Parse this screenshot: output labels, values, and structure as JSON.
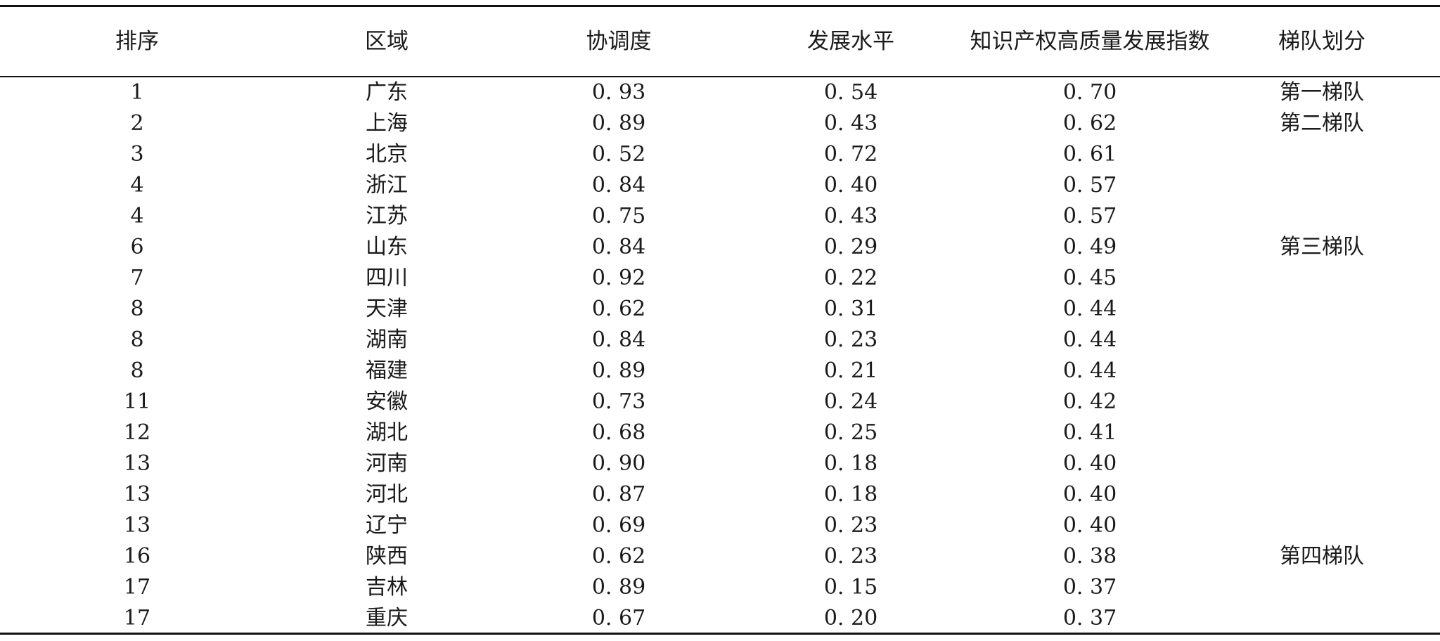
{
  "table": {
    "headers": [
      "排序",
      "区域",
      "协调度",
      "发展水平",
      "知识产权高质量发展指数",
      "梯队划分"
    ],
    "rows": [
      [
        "1",
        "广东",
        "0. 93",
        "0. 54",
        "0. 70",
        "第一梯队"
      ],
      [
        "2",
        "上海",
        "0. 89",
        "0. 43",
        "0. 62",
        "第二梯队"
      ],
      [
        "3",
        "北京",
        "0. 52",
        "0. 72",
        "0. 61",
        ""
      ],
      [
        "4",
        "浙江",
        "0. 84",
        "0. 40",
        "0. 57",
        ""
      ],
      [
        "4",
        "江苏",
        "0. 75",
        "0. 43",
        "0. 57",
        ""
      ],
      [
        "6",
        "山东",
        "0. 84",
        "0. 29",
        "0. 49",
        "第三梯队"
      ],
      [
        "7",
        "四川",
        "0. 92",
        "0. 22",
        "0. 45",
        ""
      ],
      [
        "8",
        "天津",
        "0. 62",
        "0. 31",
        "0. 44",
        ""
      ],
      [
        "8",
        "湖南",
        "0. 84",
        "0. 23",
        "0. 44",
        ""
      ],
      [
        "8",
        "福建",
        "0. 89",
        "0. 21",
        "0. 44",
        ""
      ],
      [
        "11",
        "安徽",
        "0. 73",
        "0. 24",
        "0. 42",
        ""
      ],
      [
        "12",
        "湖北",
        "0. 68",
        "0. 25",
        "0. 41",
        ""
      ],
      [
        "13",
        "河南",
        "0. 90",
        "0. 18",
        "0. 40",
        ""
      ],
      [
        "13",
        "河北",
        "0. 87",
        "0. 18",
        "0. 40",
        ""
      ],
      [
        "13",
        "辽宁",
        "0. 69",
        "0. 23",
        "0. 40",
        ""
      ],
      [
        "16",
        "陕西",
        "0. 62",
        "0. 23",
        "0. 38",
        "第四梯队"
      ],
      [
        "17",
        "吉林",
        "0. 89",
        "0. 15",
        "0. 37",
        ""
      ],
      [
        "17",
        "重庆",
        "0. 67",
        "0. 20",
        "0. 37",
        ""
      ]
    ]
  }
}
